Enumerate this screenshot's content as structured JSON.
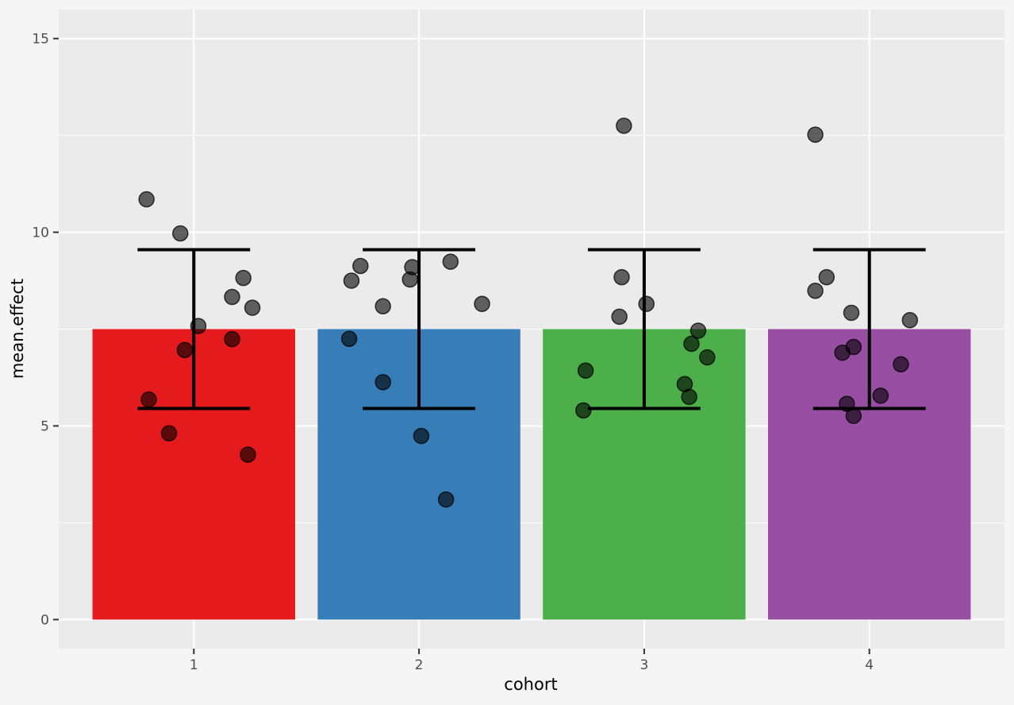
{
  "chart_data": {
    "type": "bar",
    "xlabel": "cohort",
    "ylabel": "mean.effect",
    "categories": [
      "1",
      "2",
      "3",
      "4"
    ],
    "values": [
      7.5,
      7.5,
      7.5,
      7.5
    ],
    "bar_colors": [
      "#e41a1c",
      "#377eb8",
      "#4daf4a",
      "#984ea3"
    ],
    "error_bars": [
      {
        "low": 5.45,
        "high": 9.55
      },
      {
        "low": 5.45,
        "high": 9.55
      },
      {
        "low": 5.45,
        "high": 9.55
      },
      {
        "low": 5.45,
        "high": 9.55
      }
    ],
    "points": [
      {
        "x": 0.79,
        "y": 10.85
      },
      {
        "x": 0.94,
        "y": 9.97
      },
      {
        "x": 1.22,
        "y": 8.82
      },
      {
        "x": 1.17,
        "y": 8.33
      },
      {
        "x": 1.26,
        "y": 8.05
      },
      {
        "x": 1.02,
        "y": 7.58
      },
      {
        "x": 1.17,
        "y": 7.24
      },
      {
        "x": 0.96,
        "y": 6.96
      },
      {
        "x": 0.8,
        "y": 5.68
      },
      {
        "x": 0.89,
        "y": 4.81
      },
      {
        "x": 1.24,
        "y": 4.26
      },
      {
        "x": 1.74,
        "y": 9.13
      },
      {
        "x": 1.97,
        "y": 9.1
      },
      {
        "x": 2.14,
        "y": 9.24
      },
      {
        "x": 1.7,
        "y": 8.75
      },
      {
        "x": 1.96,
        "y": 8.78
      },
      {
        "x": 1.84,
        "y": 8.09
      },
      {
        "x": 2.28,
        "y": 8.15
      },
      {
        "x": 1.69,
        "y": 7.25
      },
      {
        "x": 1.84,
        "y": 6.13
      },
      {
        "x": 2.01,
        "y": 4.74
      },
      {
        "x": 2.12,
        "y": 3.1
      },
      {
        "x": 2.91,
        "y": 12.75
      },
      {
        "x": 2.9,
        "y": 8.84
      },
      {
        "x": 3.01,
        "y": 8.15
      },
      {
        "x": 2.89,
        "y": 7.82
      },
      {
        "x": 3.24,
        "y": 7.46
      },
      {
        "x": 3.21,
        "y": 7.12
      },
      {
        "x": 3.28,
        "y": 6.77
      },
      {
        "x": 2.74,
        "y": 6.43
      },
      {
        "x": 3.18,
        "y": 6.08
      },
      {
        "x": 3.2,
        "y": 5.75
      },
      {
        "x": 2.73,
        "y": 5.4
      },
      {
        "x": 3.76,
        "y": 12.52
      },
      {
        "x": 3.81,
        "y": 8.84
      },
      {
        "x": 3.76,
        "y": 8.49
      },
      {
        "x": 3.92,
        "y": 7.92
      },
      {
        "x": 4.18,
        "y": 7.73
      },
      {
        "x": 3.93,
        "y": 7.04
      },
      {
        "x": 3.88,
        "y": 6.89
      },
      {
        "x": 4.14,
        "y": 6.59
      },
      {
        "x": 4.05,
        "y": 5.78
      },
      {
        "x": 3.9,
        "y": 5.57
      },
      {
        "x": 3.93,
        "y": 5.26
      }
    ],
    "point_color": "#000000",
    "xlim": [
      0.4,
      4.6
    ],
    "ylim": [
      -0.75,
      15.75
    ],
    "y_ticks": [
      0,
      5,
      10,
      15
    ],
    "y_tick_labels": [
      "0",
      "5",
      "10",
      "15"
    ],
    "grid": true,
    "legend": "none"
  }
}
